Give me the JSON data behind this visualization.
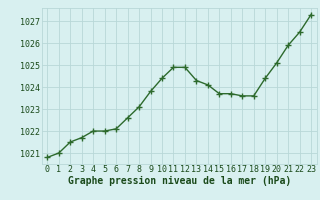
{
  "x": [
    0,
    1,
    2,
    3,
    4,
    5,
    6,
    7,
    8,
    9,
    10,
    11,
    12,
    13,
    14,
    15,
    16,
    17,
    18,
    19,
    20,
    21,
    22,
    23
  ],
  "y": [
    1020.8,
    1021.0,
    1021.5,
    1021.7,
    1022.0,
    1022.0,
    1022.1,
    1022.6,
    1023.1,
    1023.8,
    1024.4,
    1024.9,
    1024.9,
    1024.3,
    1024.1,
    1023.7,
    1023.7,
    1023.6,
    1023.6,
    1024.4,
    1025.1,
    1025.9,
    1026.5,
    1027.3
  ],
  "line_color": "#2d6a2d",
  "marker": "+",
  "markersize": 4,
  "linewidth": 1.0,
  "bg_color": "#d8f0f0",
  "grid_color": "#b8d8d8",
  "ylabel_ticks": [
    1021,
    1022,
    1023,
    1024,
    1025,
    1026,
    1027
  ],
  "xlabel": "Graphe pression niveau de la mer (hPa)",
  "xlim": [
    -0.5,
    23.5
  ],
  "ylim": [
    1020.5,
    1027.6
  ],
  "xlabel_fontsize": 7,
  "tick_fontsize": 6,
  "xlabel_color": "#1a4a1a",
  "tick_color": "#1a4a1a"
}
